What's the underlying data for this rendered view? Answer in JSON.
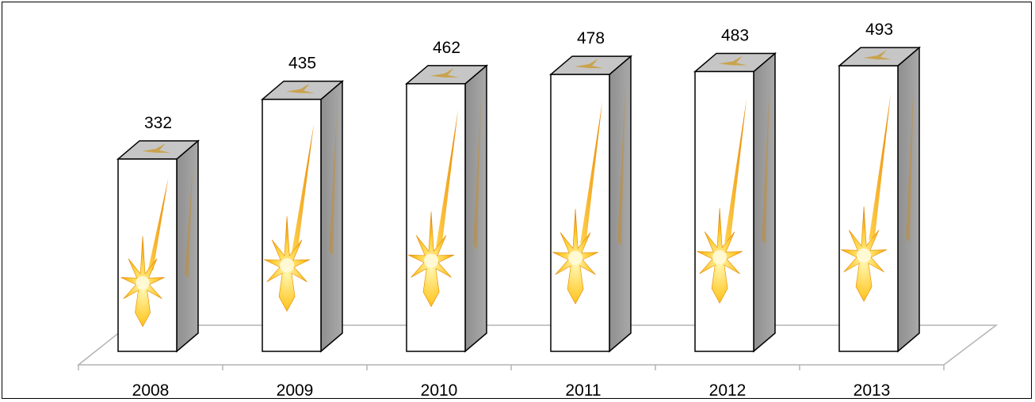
{
  "chart_data": {
    "type": "bar",
    "categories": [
      "2008",
      "2009",
      "2010",
      "2011",
      "2012",
      "2013"
    ],
    "values": [
      332,
      435,
      462,
      478,
      483,
      493
    ],
    "title": "",
    "xlabel": "",
    "ylabel": "",
    "ylim": [
      0,
      500
    ],
    "grid": false,
    "legend": "none",
    "style": "3d-column-picture-fill",
    "fill_icon": "starburst-figure-icon",
    "colors": {
      "front": "#ffffff",
      "top": "#c6c6c6",
      "side": "#9a9a9a",
      "outline": "#000000",
      "floor": "#b4b4b4",
      "star_light": "#fff7b0",
      "star_mid": "#ffcc33",
      "star_dark": "#e57f00"
    }
  }
}
